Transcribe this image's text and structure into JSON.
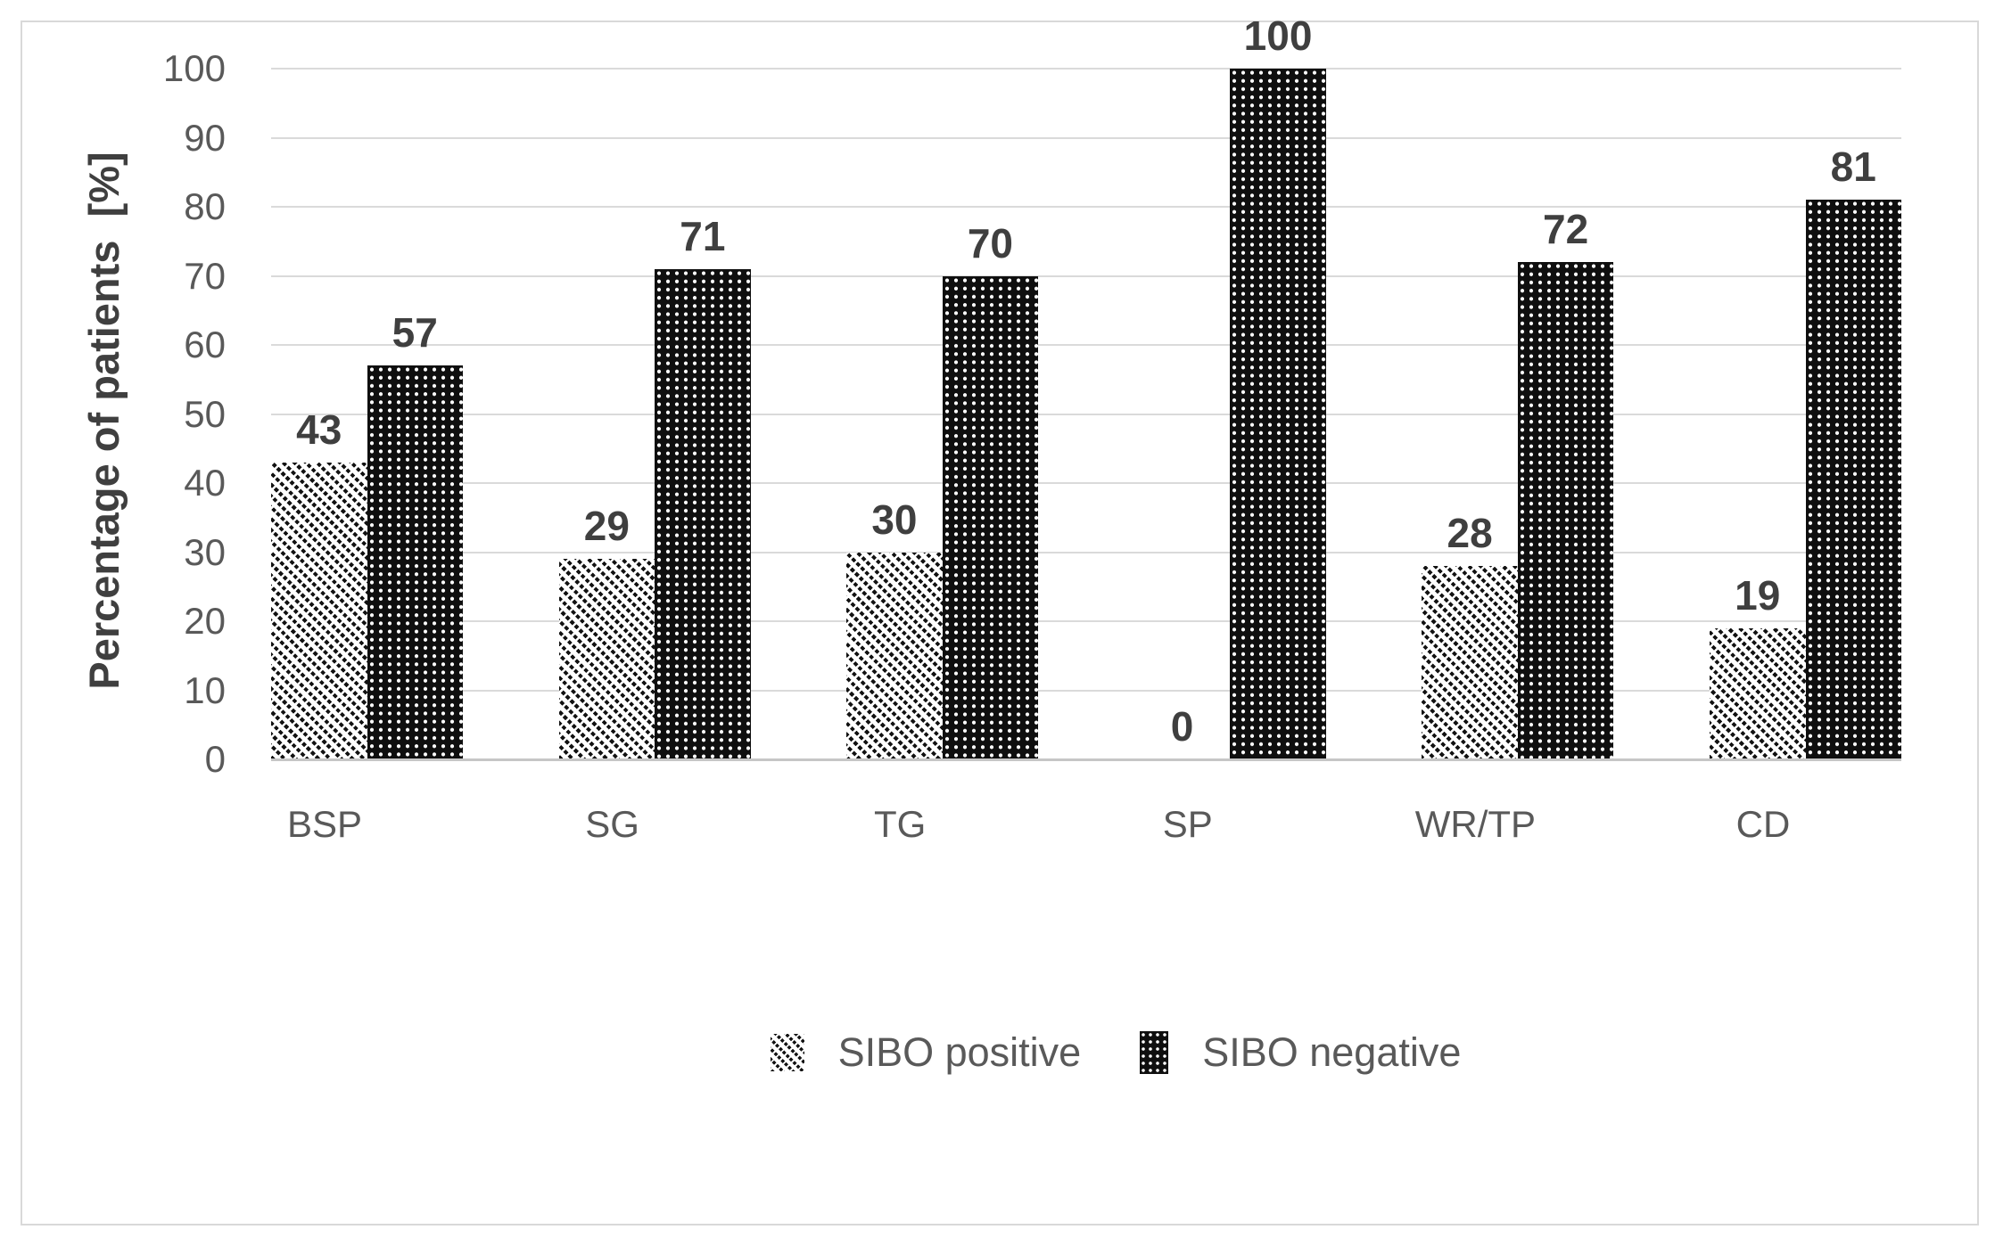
{
  "chart_data": {
    "type": "bar",
    "categories": [
      "BSP",
      "SG",
      "TG",
      "SP",
      "WR/TP",
      "CD"
    ],
    "series": [
      {
        "name": "SIBO positive",
        "pattern": "diagonal-hatch",
        "values": [
          43,
          29,
          30,
          0,
          28,
          19
        ]
      },
      {
        "name": "SIBO negative",
        "pattern": "dot-grid",
        "values": [
          57,
          71,
          70,
          100,
          72,
          81
        ]
      }
    ],
    "title": "",
    "xlabel": "",
    "ylabel": "Percentage of patients  [%]",
    "ylim": [
      0,
      100
    ],
    "yticks": [
      0,
      10,
      20,
      30,
      40,
      50,
      60,
      70,
      80,
      90,
      100
    ],
    "grid": "horizontal",
    "legend_position": "bottom",
    "data_labels": true
  },
  "colors": {
    "background": "#ffffff",
    "chart_border": "#d9d9d9",
    "gridline": "#dadada",
    "axis_line": "#c6c6c6",
    "tick_text": "#595959",
    "label_text": "#3f3f3f",
    "pattern_ink": "#0f0f0f"
  }
}
